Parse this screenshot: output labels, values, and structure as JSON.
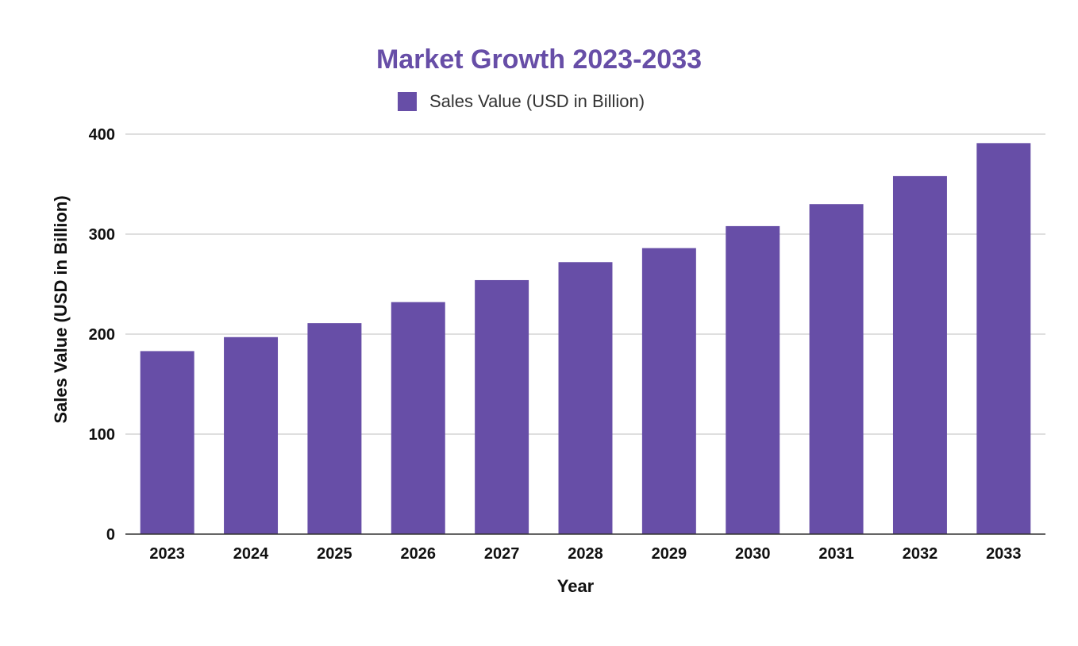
{
  "chart_data": {
    "type": "bar",
    "title": "Market Growth 2023-2033",
    "xlabel": "Year",
    "ylabel": "Sales Value (USD in Billion)",
    "categories": [
      "2023",
      "2024",
      "2025",
      "2026",
      "2027",
      "2028",
      "2029",
      "2030",
      "2031",
      "2032",
      "2033"
    ],
    "series": [
      {
        "name": "Sales Value (USD in Billion)",
        "values": [
          183,
          197,
          211,
          232,
          254,
          272,
          286,
          308,
          330,
          358,
          391
        ]
      }
    ],
    "ylim": [
      0,
      400
    ],
    "yticks": [
      0,
      100,
      200,
      300,
      400
    ],
    "grid": true,
    "legend_position": "top-center",
    "colors": {
      "bar": "#674ea7",
      "title": "#674ea7",
      "grid": "#cccccc",
      "axis": "#333333"
    }
  }
}
